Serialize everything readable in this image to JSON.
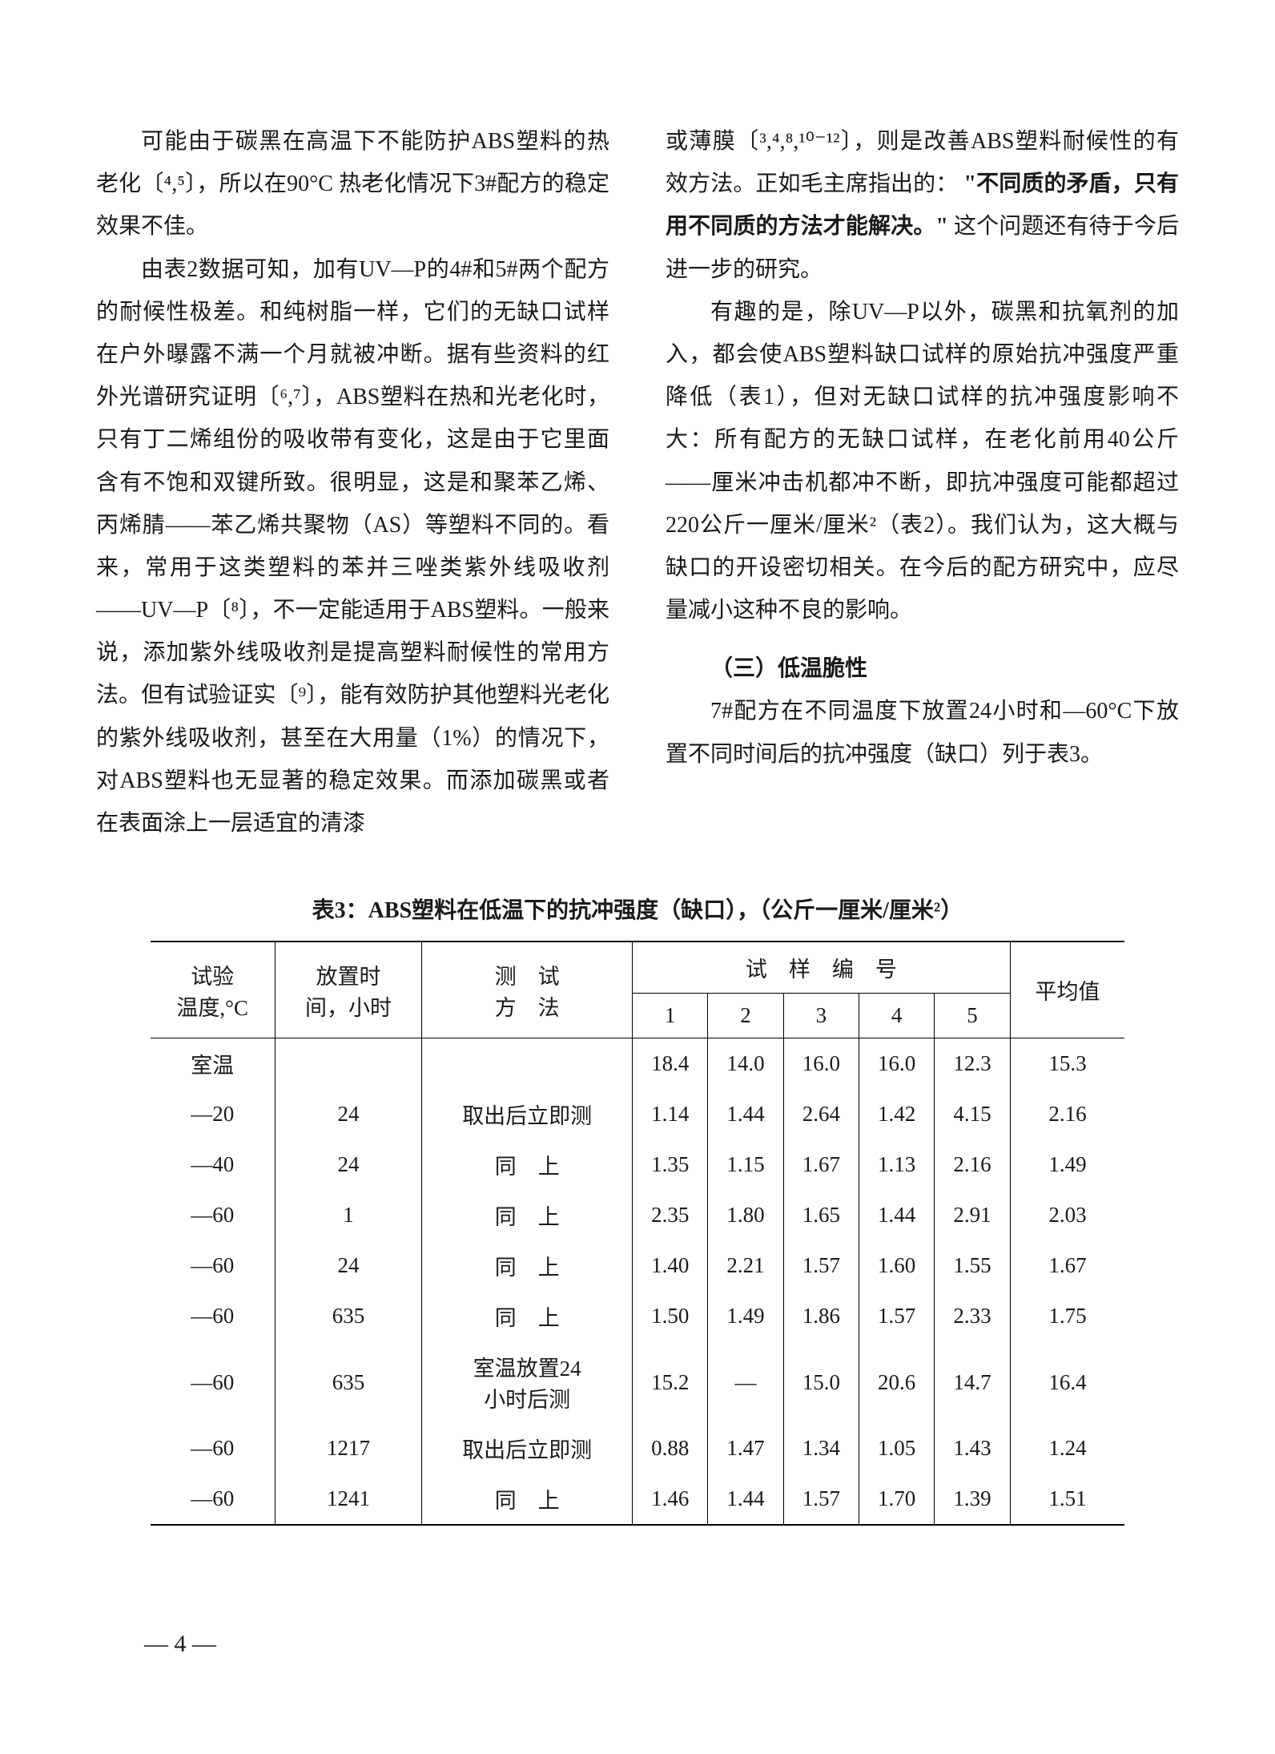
{
  "left_col": {
    "p1": "可能由于碳黑在高温下不能防护ABS塑料的热老化〔⁴,⁵〕，所以在90°C 热老化情况下3#配方的稳定效果不佳。",
    "p2": "由表2数据可知，加有UV—P的4#和5#两个配方的耐候性极差。和纯树脂一样，它们的无缺口试样在户外曝露不满一个月就被冲断。据有些资料的红外光谱研究证明〔⁶,⁷〕，ABS塑料在热和光老化时，只有丁二烯组份的吸收带有变化，这是由于它里面含有不饱和双键所致。很明显，这是和聚苯乙烯、丙烯腈——苯乙烯共聚物（AS）等塑料不同的。看来，常用于这类塑料的苯并三唑类紫外线吸收剂——UV—P〔⁸〕，不一定能适用于ABS塑料。一般来说，添加紫外线吸收剂是提高塑料耐候性的常用方法。但有试验证实〔⁹〕，能有效防护其他塑料光老化的紫外线吸收剂，甚至在大用量（1%）的情况下，对ABS塑料也无显著的稳定效果。而添加碳黑或者在表面涂上一层适宜的清漆"
  },
  "right_col": {
    "p1a": "或薄膜〔³,⁴,⁸,¹⁰⁻¹²〕，则是改善ABS塑料耐候性的有效方法。正如毛主席指出的：",
    "p1b": "\"不同质的矛盾，只有用不同质的方法才能解决。\"",
    "p1c": "这个问题还有待于今后进一步的研究。",
    "p2": "有趣的是，除UV—P以外，碳黑和抗氧剂的加入，都会使ABS塑料缺口试样的原始抗冲强度严重降低（表1），但对无缺口试样的抗冲强度影响不大：所有配方的无缺口试样，在老化前用40公斤——厘米冲击机都冲不断，即抗冲强度可能都超过220公斤一厘米/厘米²（表2）。我们认为，这大概与缺口的开设密切相关。在今后的配方研究中，应尽量减小这种不良的影响。",
    "heading": "（三）低温脆性",
    "p3": "7#配方在不同温度下放置24小时和—60°C下放置不同时间后的抗冲强度（缺口）列于表3。"
  },
  "table": {
    "caption": "表3：ABS塑料在低温下的抗冲强度（缺口），（公斤一厘米/厘米²）",
    "headers": {
      "col1_line1": "试验",
      "col1_line2": "温度,°C",
      "col2_line1": "放置时",
      "col2_line2": "间，小时",
      "col3_line1": "测　试",
      "col3_line2": "方　法",
      "sample_header": "试　样　编　号",
      "s1": "1",
      "s2": "2",
      "s3": "3",
      "s4": "4",
      "s5": "5",
      "avg": "平均值"
    },
    "rows": [
      {
        "t": "室温",
        "h": "",
        "m": "",
        "v1": "18.4",
        "v2": "14.0",
        "v3": "16.0",
        "v4": "16.0",
        "v5": "12.3",
        "avg": "15.3"
      },
      {
        "t": "—20",
        "h": "24",
        "m": "取出后立即测",
        "v1": "1.14",
        "v2": "1.44",
        "v3": "2.64",
        "v4": "1.42",
        "v5": "4.15",
        "avg": "2.16"
      },
      {
        "t": "—40",
        "h": "24",
        "m": "同　上",
        "v1": "1.35",
        "v2": "1.15",
        "v3": "1.67",
        "v4": "1.13",
        "v5": "2.16",
        "avg": "1.49"
      },
      {
        "t": "—60",
        "h": "1",
        "m": "同　上",
        "v1": "2.35",
        "v2": "1.80",
        "v3": "1.65",
        "v4": "1.44",
        "v5": "2.91",
        "avg": "2.03"
      },
      {
        "t": "—60",
        "h": "24",
        "m": "同　上",
        "v1": "1.40",
        "v2": "2.21",
        "v3": "1.57",
        "v4": "1.60",
        "v5": "1.55",
        "avg": "1.67"
      },
      {
        "t": "—60",
        "h": "635",
        "m": "同　上",
        "v1": "1.50",
        "v2": "1.49",
        "v3": "1.86",
        "v4": "1.57",
        "v5": "2.33",
        "avg": "1.75"
      },
      {
        "t": "—60",
        "h": "635",
        "m": "室温放置24\n小时后测",
        "v1": "15.2",
        "v2": "—",
        "v3": "15.0",
        "v4": "20.6",
        "v5": "14.7",
        "avg": "16.4"
      },
      {
        "t": "—60",
        "h": "1217",
        "m": "取出后立即测",
        "v1": "0.88",
        "v2": "1.47",
        "v3": "1.34",
        "v4": "1.05",
        "v5": "1.43",
        "avg": "1.24"
      },
      {
        "t": "—60",
        "h": "1241",
        "m": "同　上",
        "v1": "1.46",
        "v2": "1.44",
        "v3": "1.57",
        "v4": "1.70",
        "v5": "1.39",
        "avg": "1.51"
      }
    ]
  },
  "page_number": "— 4 —"
}
